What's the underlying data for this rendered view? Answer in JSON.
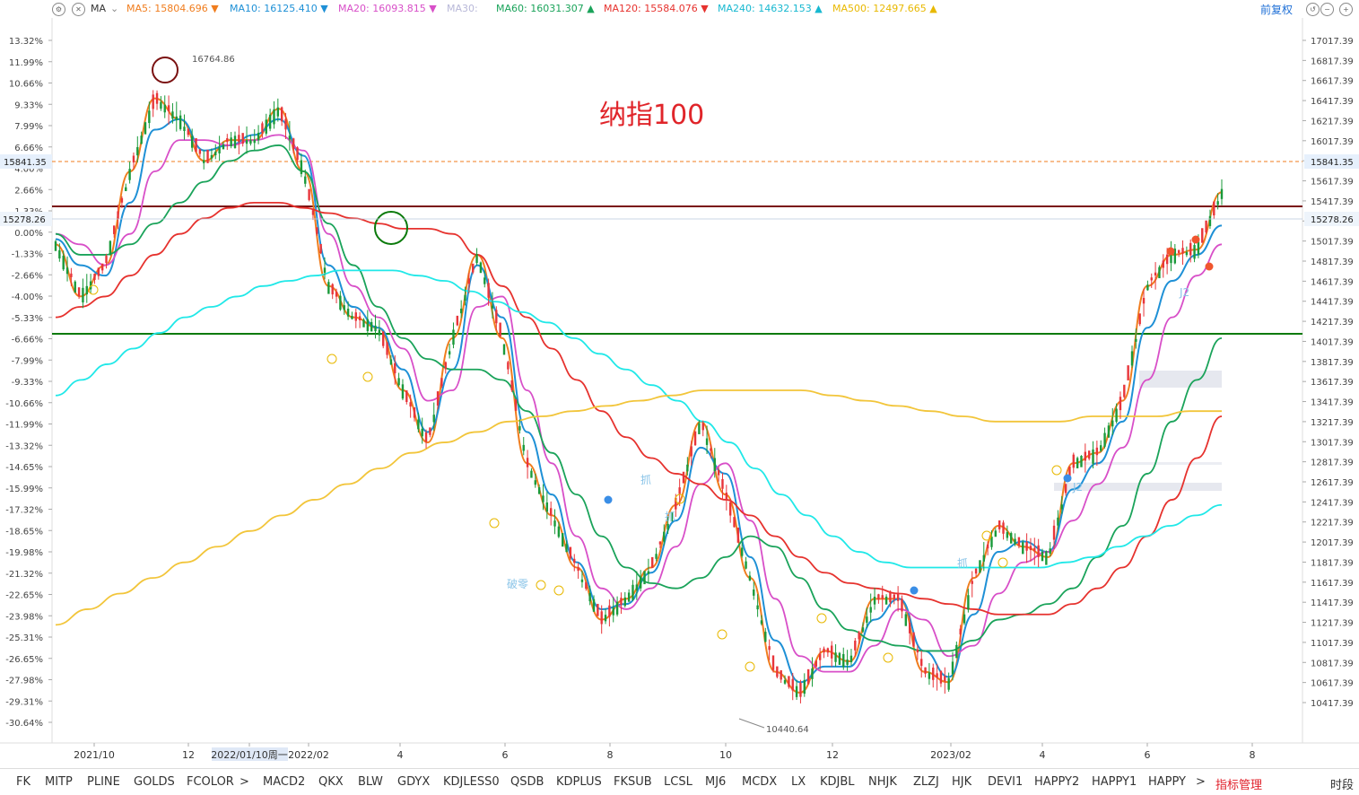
{
  "toolbar": {
    "indicator_name": "MA",
    "ma_items": [
      {
        "label": "MA5:",
        "value": "15804.696",
        "arrow": "▼",
        "color": "#f07d1e"
      },
      {
        "label": "MA10:",
        "value": "16125.410",
        "arrow": "▼",
        "color": "#1e90d6"
      },
      {
        "label": "MA20:",
        "value": "16093.815",
        "arrow": "▼",
        "color": "#d84fc8"
      },
      {
        "label": "MA30:",
        "value": "",
        "arrow": "",
        "color": "#b8b8d8"
      },
      {
        "label": "MA60:",
        "value": "16031.307",
        "arrow": "▲",
        "color": "#1aa35a"
      },
      {
        "label": "MA120:",
        "value": "15584.076",
        "arrow": "▼",
        "color": "#e6322e"
      },
      {
        "label": "MA240:",
        "value": "14632.153",
        "arrow": "▲",
        "color": "#17b8d0"
      },
      {
        "label": "MA500:",
        "value": "12497.665",
        "arrow": "▲",
        "color": "#e8b800"
      }
    ],
    "adjust_label": "前复权"
  },
  "bottom_tabs": [
    "FK",
    "MITP",
    "PLINE",
    "GOLDS",
    "FCOLOR",
    ">",
    "MACD2",
    "QKX",
    "BLW",
    "GDYX",
    "KDJLESS0",
    "QSDB",
    "KDPLUS",
    "FKSUB",
    "LCSL",
    "MJ6",
    "MCDX",
    "LX",
    "KDJBL",
    "NHJK",
    "ZLZJ",
    "HJK",
    "DEVI1",
    "HAPPY2",
    "HAPPY1",
    "HAPPY",
    ">",
    "指标管理",
    "时段"
  ],
  "colors": {
    "up": "#e8353a",
    "down": "#1a9a3a",
    "orange": "#f07d1e",
    "blue": "#1e90d6",
    "pink": "#d84fc8",
    "green": "#1aa35a",
    "red": "#e6322e",
    "cyan": "#20e8e8",
    "yellow": "#f2c53a",
    "darkred": "#7a1010",
    "darkgreen": "#0b7a0b"
  },
  "chart_data": {
    "type": "line",
    "title": "纳指100",
    "x_ticks": [
      "2021/10",
      "12",
      "2022/01/10周一",
      "2022/02",
      "4",
      "6",
      "8",
      "10",
      "12",
      "2023/02",
      "4",
      "6",
      "8"
    ],
    "y_ticks_price": [
      "17017.39",
      "16817.39",
      "16617.39",
      "16417.39",
      "16217.39",
      "16017.39",
      "15841.35",
      "15617.39",
      "15417.39",
      "15278.26",
      "15017.39",
      "14817.39",
      "14617.39",
      "14417.39",
      "14217.39",
      "14017.39",
      "13817.39",
      "13617.39",
      "13417.39",
      "13217.39",
      "13017.39",
      "12817.39",
      "12617.39",
      "12417.39",
      "12217.39",
      "12017.39",
      "11817.39",
      "11617.39",
      "11417.39",
      "11217.39",
      "11017.39",
      "10817.39",
      "10617.39",
      "10417.39"
    ],
    "y_ticks_pct": [
      "13.32%",
      "11.99%",
      "10.66%",
      "9.33%",
      "7.99%",
      "6.66%",
      "4.00%",
      "2.66%",
      "1.33%",
      "0.00%",
      "-1.33%",
      "-2.66%",
      "-4.00%",
      "-5.33%",
      "-6.66%",
      "-7.99%",
      "-9.33%",
      "-10.66%",
      "-11.99%",
      "-13.32%",
      "-14.65%",
      "-15.99%",
      "-17.32%",
      "-18.65%",
      "-19.98%",
      "-21.32%",
      "-22.65%",
      "-23.98%",
      "-25.31%",
      "-26.65%",
      "-27.98%",
      "-29.31%",
      "-30.64%"
    ],
    "y_range": [
      10317,
      17117
    ],
    "current_price": "15841.35",
    "left_price_tag": "15841.35",
    "left_marker": "15278.26",
    "right_marker": "15278.26",
    "high_label": "16764.86",
    "low_label": "10440.64",
    "resistance_line": 15417,
    "support_line": 14150,
    "period_labels": [
      "破零",
      "抓",
      "抓",
      "抓",
      "J2",
      "J2"
    ],
    "ma_series": [
      {
        "name": "MA5",
        "values": [
          15100,
          14600,
          14900,
          15800,
          16500,
          16300,
          15900,
          16100,
          16100,
          16400,
          15800,
          14700,
          14400,
          14300,
          13700,
          13200,
          14200,
          15000,
          14200,
          13000,
          12500,
          12000,
          11500,
          11700,
          12000,
          12600,
          13400,
          12700,
          11900,
          11000,
          10800,
          11200,
          11100,
          11700,
          11700,
          11000,
          10900,
          11900,
          12400,
          12200,
          12100,
          13000,
          13100,
          13600,
          14700,
          15000,
          15050,
          15600
        ]
      },
      {
        "name": "MA10",
        "values": [
          15150,
          14900,
          14800,
          15500,
          16200,
          16300,
          16000,
          16050,
          16150,
          16300,
          15950,
          14900,
          14500,
          14300,
          13900,
          13300,
          13900,
          14900,
          14400,
          13300,
          12700,
          12050,
          11600,
          11650,
          11950,
          12450,
          13150,
          12900,
          12100,
          11300,
          10900,
          11050,
          11050,
          11500,
          11700,
          11200,
          10950,
          11550,
          12150,
          12250,
          12150,
          12750,
          13000,
          13400,
          14300,
          14750,
          15000,
          15280
        ]
      },
      {
        "name": "MA20",
        "values": [
          15200,
          15100,
          14900,
          15200,
          15800,
          16100,
          16100,
          16050,
          16100,
          16150,
          16000,
          15200,
          14700,
          14400,
          14100,
          13600,
          13700,
          14500,
          14600,
          13700,
          13000,
          12300,
          11800,
          11600,
          11800,
          12200,
          12800,
          13000,
          12450,
          11700,
          11150,
          11000,
          11000,
          11250,
          11600,
          11500,
          11150,
          11250,
          11750,
          12050,
          12150,
          12450,
          12800,
          13150,
          13800,
          14400,
          14800,
          15100
        ]
      },
      {
        "name": "MA60",
        "values": [
          15200,
          15000,
          15000,
          15100,
          15300,
          15500,
          15700,
          15900,
          16000,
          16050,
          15800,
          15300,
          14900,
          14500,
          14200,
          14000,
          13900,
          13900,
          13800,
          13500,
          13100,
          12700,
          12300,
          12000,
          11850,
          11800,
          11900,
          12100,
          12300,
          12200,
          11900,
          11600,
          11400,
          11300,
          11250,
          11200,
          11200,
          11300,
          11500,
          11550,
          11650,
          11800,
          12100,
          12400,
          12900,
          13400,
          13800,
          14200
        ]
      },
      {
        "name": "MA120",
        "values": [
          14400,
          14500,
          14600,
          14800,
          15000,
          15200,
          15350,
          15450,
          15500,
          15500,
          15450,
          15400,
          15350,
          15300,
          15250,
          15250,
          15200,
          15000,
          14700,
          14400,
          14100,
          13800,
          13500,
          13250,
          13050,
          12900,
          12800,
          12650,
          12500,
          12300,
          12100,
          11950,
          11850,
          11800,
          11750,
          11700,
          11650,
          11600,
          11550,
          11550,
          11550,
          11650,
          11800,
          12000,
          12300,
          12650,
          13050,
          13450
        ]
      },
      {
        "name": "MA240",
        "values": [
          13650,
          13800,
          13950,
          14100,
          14250,
          14400,
          14500,
          14600,
          14700,
          14750,
          14800,
          14850,
          14850,
          14850,
          14800,
          14750,
          14650,
          14550,
          14450,
          14350,
          14200,
          14050,
          13900,
          13750,
          13600,
          13400,
          13200,
          12950,
          12700,
          12500,
          12300,
          12150,
          12050,
          12000,
          12000,
          12000,
          12000,
          12000,
          12000,
          12050,
          12100,
          12200,
          12300,
          12400,
          12500,
          12600
        ]
      },
      {
        "name": "MA500",
        "values": [
          11450,
          11600,
          11750,
          11900,
          12050,
          12200,
          12350,
          12500,
          12650,
          12800,
          12950,
          13100,
          13200,
          13300,
          13400,
          13450,
          13500,
          13550,
          13600,
          13650,
          13700,
          13700,
          13700,
          13700,
          13650,
          13600,
          13550,
          13500,
          13450,
          13400,
          13400,
          13400,
          13450,
          13450,
          13450,
          13500,
          13500
        ]
      }
    ]
  }
}
